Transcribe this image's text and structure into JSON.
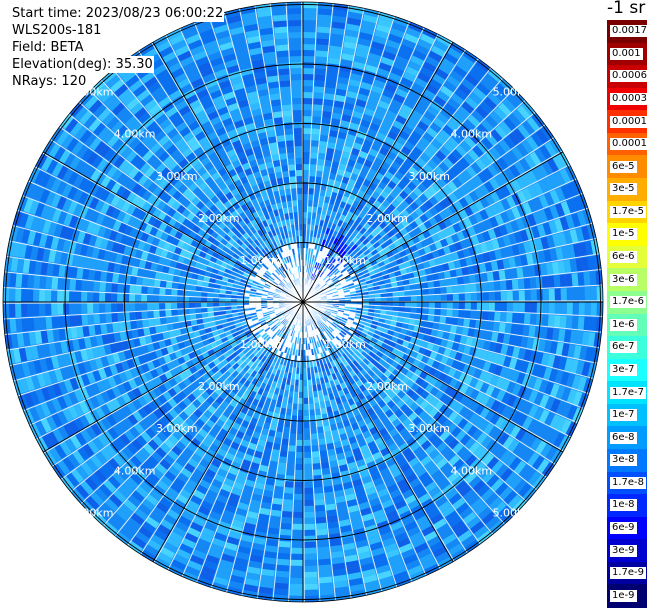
{
  "header": {
    "start_time": "Start time: 2023/08/23 06:00:22",
    "instrument": "WLS200s-181",
    "field": "Field: BETA",
    "elevation": "Elevation(deg): 35.30",
    "nrays": "NRays: 120"
  },
  "colorbar": {
    "unit_label": "-1 sr",
    "labels": [
      "0.0017",
      "0.001",
      "0.0006",
      "0.0003",
      "0.00017",
      "0.0001",
      "6e-5",
      "3e-5",
      "1.7e-5",
      "1e-5",
      "6e-6",
      "3e-6",
      "1.7e-6",
      "1e-6",
      "6e-7",
      "3e-7",
      "1.7e-7",
      "1e-7",
      "6e-8",
      "3e-8",
      "1.7e-8",
      "1e-8",
      "6e-9",
      "3e-9",
      "1.7e-9",
      "1e-9"
    ],
    "colors": [
      "#7a0000",
      "#a00000",
      "#c80000",
      "#f00000",
      "#ff3000",
      "#ff6000",
      "#ff8c00",
      "#ffad00",
      "#ffd400",
      "#ffff00",
      "#e4ff3a",
      "#b8ff66",
      "#8dff90",
      "#63ffb8",
      "#3cffdc",
      "#1affff",
      "#00e4ff",
      "#00c0ff",
      "#009cff",
      "#0078ff",
      "#0050ff",
      "#0028ff",
      "#0000ff",
      "#0000d0",
      "#0000a0",
      "#000070"
    ]
  },
  "chart_data": {
    "type": "heatmap",
    "projection": "polar PPI",
    "field": "BETA",
    "elevation_deg": 35.3,
    "nrays": 120,
    "range_rings_km": [
      1,
      2,
      3,
      4,
      5
    ],
    "ring_labels": [
      "1.00km",
      "2.00km",
      "3.00km",
      "4.00km",
      "5.00km"
    ],
    "azimuth_lines_deg": [
      0,
      30,
      60,
      90,
      120,
      150,
      180,
      210,
      240,
      270,
      300,
      330
    ],
    "colorscale": "log, 1e-9 to 0.0017",
    "dominant_value_range": [
      "3e-8",
      "1e-7"
    ],
    "enhanced_region": "near-range, azimuth ~20-40 deg, values ~1e-8"
  }
}
